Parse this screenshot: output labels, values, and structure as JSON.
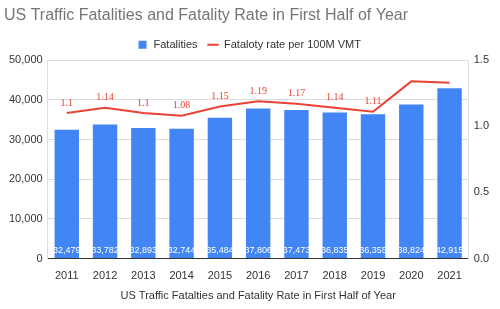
{
  "chart_data": {
    "type": "bar",
    "title": "US Traffic Fatalities and Fatality Rate in First Half of Year",
    "xlabel": "US Traffic Fatalties and Fatality Rate in First Half of Year",
    "categories": [
      "2011",
      "2012",
      "2013",
      "2014",
      "2015",
      "2016",
      "2017",
      "2018",
      "2019",
      "2020",
      "2021"
    ],
    "series": [
      {
        "name": "Fatalities",
        "type": "bar",
        "color": "#4285f4",
        "values": [
          32479,
          33782,
          32893,
          32744,
          35484,
          37806,
          37473,
          36835,
          36355,
          38824,
          42915
        ],
        "value_labels": [
          "32,479",
          "33,782",
          "32,893",
          "32,744",
          "35,484",
          "37,806",
          "37,473",
          "36,835",
          "36,355",
          "38,824",
          "42,915"
        ]
      },
      {
        "name": "Fataloty rate per 100M VMT",
        "type": "line",
        "color": "#ea4335",
        "axis": "y2",
        "marker": "none",
        "values": [
          1.1,
          1.14,
          1.1,
          1.08,
          1.15,
          1.19,
          1.17,
          1.14,
          1.11,
          1.34,
          1.33
        ],
        "value_labels": [
          "1.1",
          "1.14",
          "1.1",
          "1.08",
          "1.15",
          "1.19",
          "1.17",
          "1.14",
          "1.11",
          null,
          null
        ]
      }
    ],
    "ylim": [
      0,
      50000
    ],
    "yticks": [
      0,
      {
        "value": 10000,
        "label": "10,000"
      },
      {
        "value": 20000,
        "label": "20,000"
      },
      {
        "value": 30000,
        "label": "30,000"
      },
      {
        "value": 40000,
        "label": "40,000"
      },
      {
        "value": 50000,
        "label": "50,000"
      }
    ],
    "y2lim": [
      0,
      1.5
    ],
    "y2ticks": [
      {
        "value": 0,
        "label": "0.0"
      },
      0.5,
      {
        "value": 1,
        "label": "1.0"
      },
      1.5
    ],
    "grid": true,
    "legend": "top",
    "data_labels": true
  }
}
